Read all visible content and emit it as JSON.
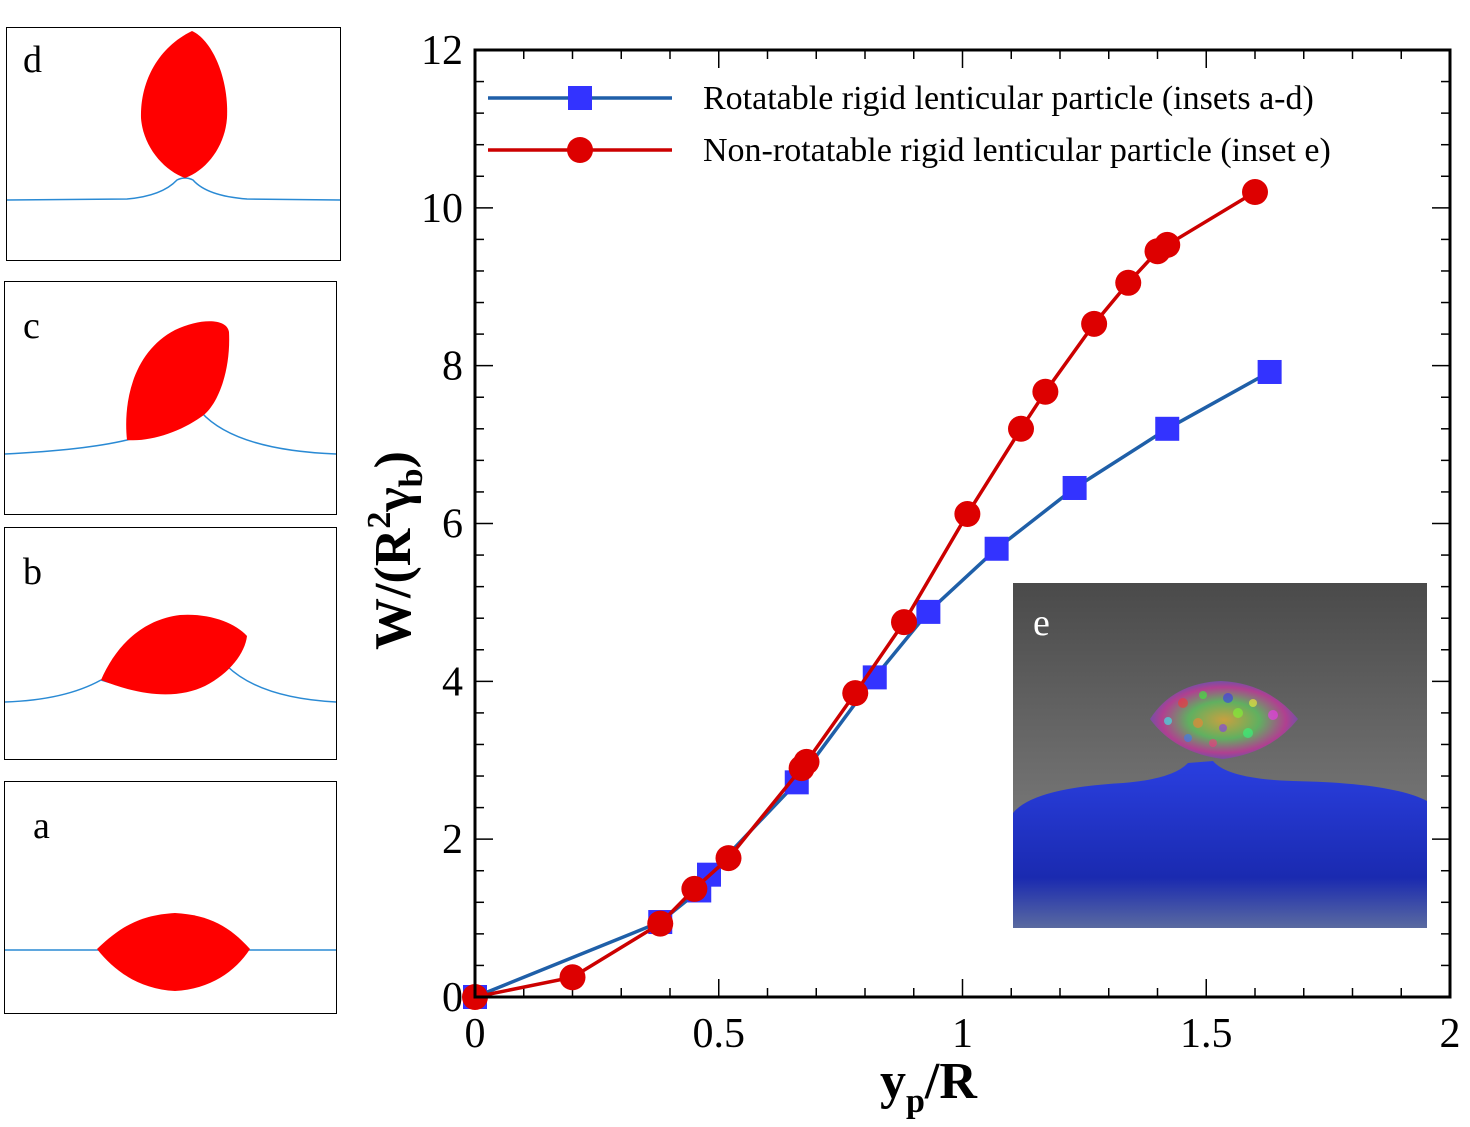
{
  "chart_data": {
    "type": "line",
    "xlabel": "y_p/R",
    "ylabel": "W/(R^2 γ_b)",
    "xlim": [
      0,
      2
    ],
    "ylim": [
      0,
      12
    ],
    "x_ticks": [
      "0",
      "0.5",
      "1",
      "1.5",
      "2"
    ],
    "y_ticks": [
      "0",
      "2",
      "4",
      "6",
      "8",
      "10",
      "12"
    ],
    "legend_position": "top-right",
    "series": [
      {
        "name": "Rotatable rigid lenticular particle (insets a-d)",
        "color": "#1f5fa8",
        "marker_color": "#3333ff",
        "marker": "square",
        "x": [
          0,
          0.38,
          0.46,
          0.48,
          0.66,
          0.82,
          0.93,
          1.07,
          1.23,
          1.42,
          1.63
        ],
        "y": [
          0,
          0.95,
          1.35,
          1.55,
          2.72,
          4.05,
          4.88,
          5.68,
          6.45,
          7.2,
          7.92
        ]
      },
      {
        "name": "Non-rotatable rigid lenticular particle (inset e)",
        "color": "#cc0000",
        "marker_color": "#dd0000",
        "marker": "circle",
        "x": [
          0,
          0.2,
          0.38,
          0.45,
          0.52,
          0.67,
          0.68,
          0.78,
          0.88,
          1.01,
          1.12,
          1.17,
          1.27,
          1.34,
          1.4,
          1.42,
          1.6
        ],
        "y": [
          0,
          0.25,
          0.93,
          1.37,
          1.76,
          2.9,
          2.98,
          3.85,
          4.75,
          6.12,
          7.2,
          7.67,
          8.53,
          9.05,
          9.45,
          9.53,
          10.2
        ]
      }
    ]
  },
  "axis_text": {
    "y_main": "W/(R",
    "y_sup": "2",
    "y_gamma": "γ",
    "y_sub": "b",
    "y_close": ")",
    "x_main": "y",
    "x_sub": "p",
    "x_rest": "/R"
  },
  "insets": {
    "a": "a",
    "b": "b",
    "c": "c",
    "d": "d",
    "e": "e"
  },
  "colors": {
    "particle": "#ff0000",
    "interface": "#2a8ad4",
    "liquid": "#1a2fd0",
    "background_gray": "#6a6a6a"
  }
}
